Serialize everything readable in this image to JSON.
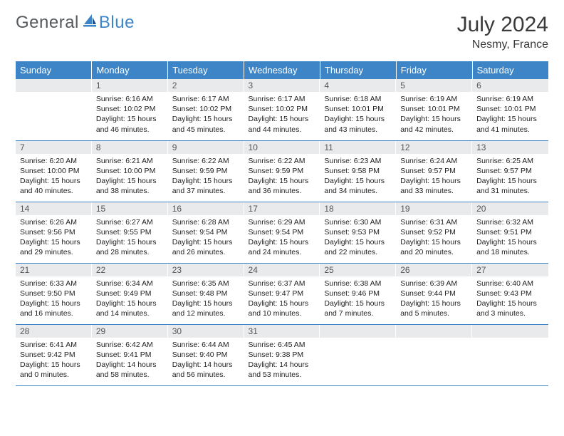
{
  "brand": {
    "part1": "General",
    "part2": "Blue"
  },
  "title": "July 2024",
  "location": "Nesmy, France",
  "colors": {
    "header_bg": "#3d85c6",
    "header_fg": "#ffffff",
    "daynum_bg": "#e9eaeb",
    "rule": "#3d85c6",
    "logo_gray": "#555a5e",
    "logo_blue": "#3d85c6"
  },
  "weekdays": [
    "Sunday",
    "Monday",
    "Tuesday",
    "Wednesday",
    "Thursday",
    "Friday",
    "Saturday"
  ],
  "start_offset": 1,
  "days": [
    {
      "n": 1,
      "sunrise": "6:16 AM",
      "sunset": "10:02 PM",
      "dl_h": 15,
      "dl_m": 46
    },
    {
      "n": 2,
      "sunrise": "6:17 AM",
      "sunset": "10:02 PM",
      "dl_h": 15,
      "dl_m": 45
    },
    {
      "n": 3,
      "sunrise": "6:17 AM",
      "sunset": "10:02 PM",
      "dl_h": 15,
      "dl_m": 44
    },
    {
      "n": 4,
      "sunrise": "6:18 AM",
      "sunset": "10:01 PM",
      "dl_h": 15,
      "dl_m": 43
    },
    {
      "n": 5,
      "sunrise": "6:19 AM",
      "sunset": "10:01 PM",
      "dl_h": 15,
      "dl_m": 42
    },
    {
      "n": 6,
      "sunrise": "6:19 AM",
      "sunset": "10:01 PM",
      "dl_h": 15,
      "dl_m": 41
    },
    {
      "n": 7,
      "sunrise": "6:20 AM",
      "sunset": "10:00 PM",
      "dl_h": 15,
      "dl_m": 40
    },
    {
      "n": 8,
      "sunrise": "6:21 AM",
      "sunset": "10:00 PM",
      "dl_h": 15,
      "dl_m": 38
    },
    {
      "n": 9,
      "sunrise": "6:22 AM",
      "sunset": "9:59 PM",
      "dl_h": 15,
      "dl_m": 37
    },
    {
      "n": 10,
      "sunrise": "6:22 AM",
      "sunset": "9:59 PM",
      "dl_h": 15,
      "dl_m": 36
    },
    {
      "n": 11,
      "sunrise": "6:23 AM",
      "sunset": "9:58 PM",
      "dl_h": 15,
      "dl_m": 34
    },
    {
      "n": 12,
      "sunrise": "6:24 AM",
      "sunset": "9:57 PM",
      "dl_h": 15,
      "dl_m": 33
    },
    {
      "n": 13,
      "sunrise": "6:25 AM",
      "sunset": "9:57 PM",
      "dl_h": 15,
      "dl_m": 31
    },
    {
      "n": 14,
      "sunrise": "6:26 AM",
      "sunset": "9:56 PM",
      "dl_h": 15,
      "dl_m": 29
    },
    {
      "n": 15,
      "sunrise": "6:27 AM",
      "sunset": "9:55 PM",
      "dl_h": 15,
      "dl_m": 28
    },
    {
      "n": 16,
      "sunrise": "6:28 AM",
      "sunset": "9:54 PM",
      "dl_h": 15,
      "dl_m": 26
    },
    {
      "n": 17,
      "sunrise": "6:29 AM",
      "sunset": "9:54 PM",
      "dl_h": 15,
      "dl_m": 24
    },
    {
      "n": 18,
      "sunrise": "6:30 AM",
      "sunset": "9:53 PM",
      "dl_h": 15,
      "dl_m": 22
    },
    {
      "n": 19,
      "sunrise": "6:31 AM",
      "sunset": "9:52 PM",
      "dl_h": 15,
      "dl_m": 20
    },
    {
      "n": 20,
      "sunrise": "6:32 AM",
      "sunset": "9:51 PM",
      "dl_h": 15,
      "dl_m": 18
    },
    {
      "n": 21,
      "sunrise": "6:33 AM",
      "sunset": "9:50 PM",
      "dl_h": 15,
      "dl_m": 16
    },
    {
      "n": 22,
      "sunrise": "6:34 AM",
      "sunset": "9:49 PM",
      "dl_h": 15,
      "dl_m": 14
    },
    {
      "n": 23,
      "sunrise": "6:35 AM",
      "sunset": "9:48 PM",
      "dl_h": 15,
      "dl_m": 12
    },
    {
      "n": 24,
      "sunrise": "6:37 AM",
      "sunset": "9:47 PM",
      "dl_h": 15,
      "dl_m": 10
    },
    {
      "n": 25,
      "sunrise": "6:38 AM",
      "sunset": "9:46 PM",
      "dl_h": 15,
      "dl_m": 7
    },
    {
      "n": 26,
      "sunrise": "6:39 AM",
      "sunset": "9:44 PM",
      "dl_h": 15,
      "dl_m": 5
    },
    {
      "n": 27,
      "sunrise": "6:40 AM",
      "sunset": "9:43 PM",
      "dl_h": 15,
      "dl_m": 3
    },
    {
      "n": 28,
      "sunrise": "6:41 AM",
      "sunset": "9:42 PM",
      "dl_h": 15,
      "dl_m": 0
    },
    {
      "n": 29,
      "sunrise": "6:42 AM",
      "sunset": "9:41 PM",
      "dl_h": 14,
      "dl_m": 58
    },
    {
      "n": 30,
      "sunrise": "6:44 AM",
      "sunset": "9:40 PM",
      "dl_h": 14,
      "dl_m": 56
    },
    {
      "n": 31,
      "sunrise": "6:45 AM",
      "sunset": "9:38 PM",
      "dl_h": 14,
      "dl_m": 53
    }
  ]
}
